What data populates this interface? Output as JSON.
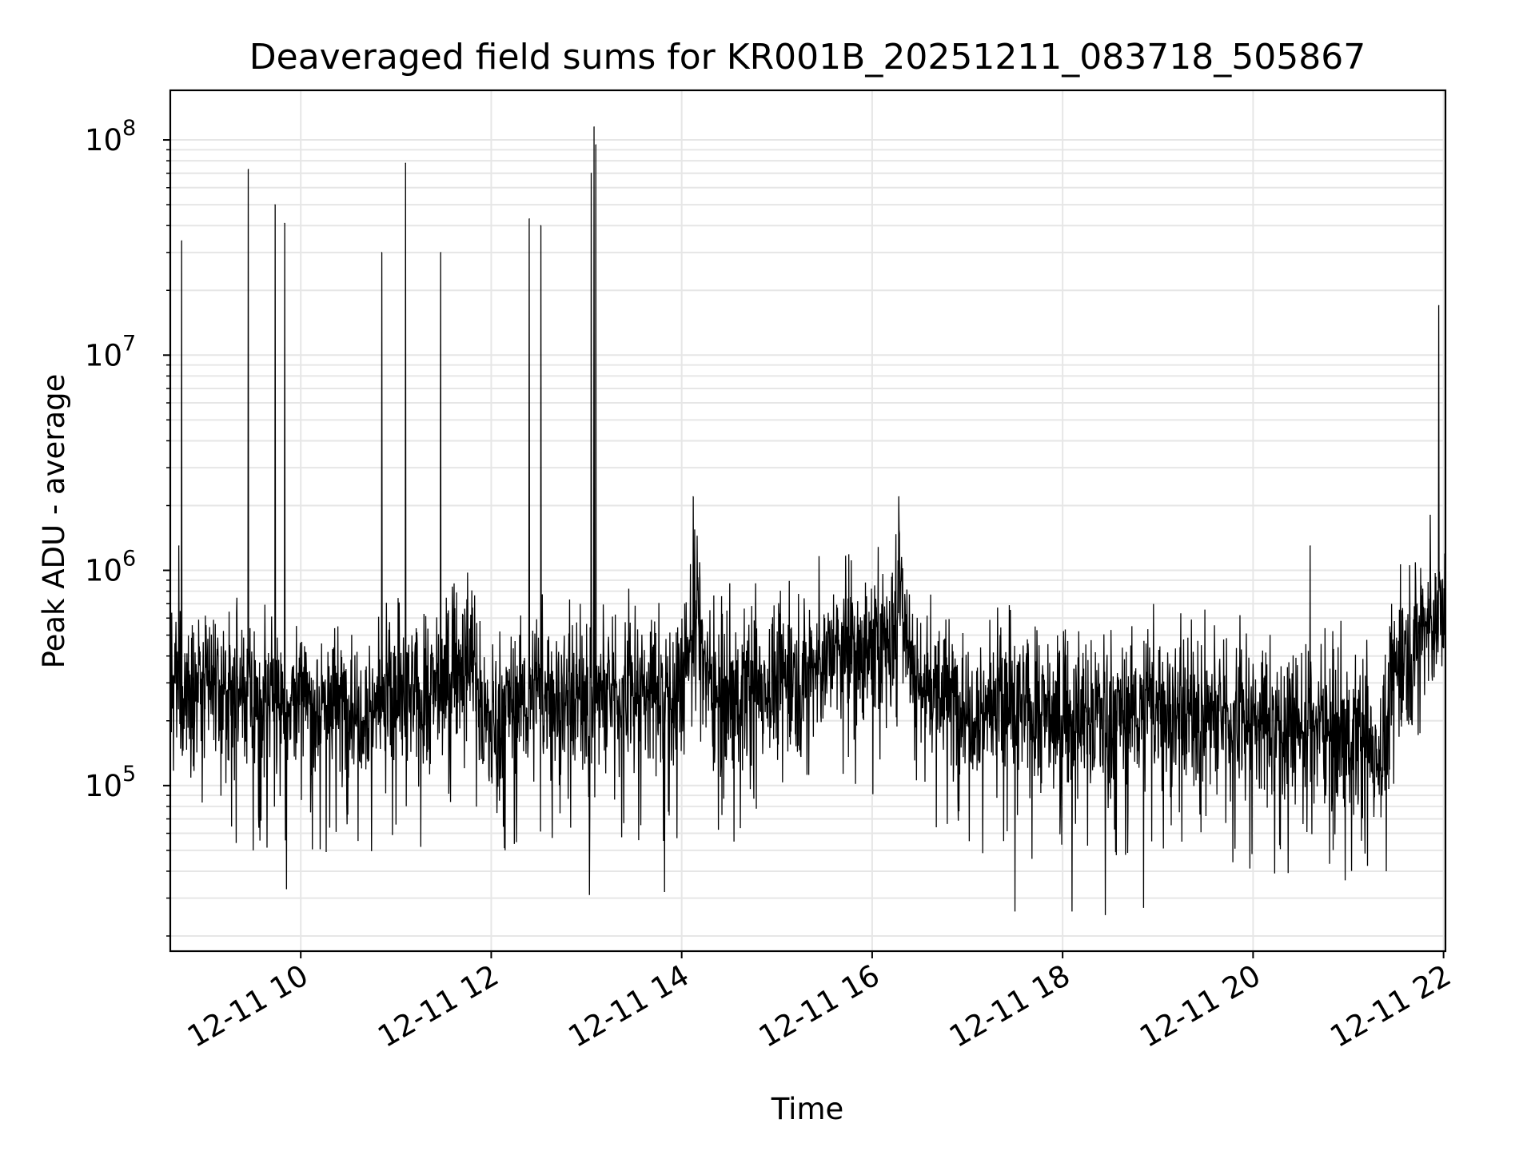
{
  "chart_data": {
    "type": "line",
    "title": "Deaveraged field sums for KR001B_20251211_083718_505867",
    "xlabel": "Time",
    "ylabel": "Peak ADU - average",
    "yscale": "log",
    "ylim": [
      17000,
      170000000
    ],
    "xlim_hours": [
      8.63,
      22.02
    ],
    "grid": true,
    "line_color": "#000000",
    "grid_color": "#e6e6e6",
    "x_ticks": [
      {
        "hour": 10,
        "label": "12-11 10"
      },
      {
        "hour": 12,
        "label": "12-11 12"
      },
      {
        "hour": 14,
        "label": "12-11 14"
      },
      {
        "hour": 16,
        "label": "12-11 16"
      },
      {
        "hour": 18,
        "label": "12-11 18"
      },
      {
        "hour": 20,
        "label": "12-11 20"
      },
      {
        "hour": 22,
        "label": "12-11 22"
      }
    ],
    "y_ticks": [
      {
        "value": 100000,
        "base": "10",
        "exp": "5"
      },
      {
        "value": 1000000,
        "base": "10",
        "exp": "6"
      },
      {
        "value": 10000000,
        "base": "10",
        "exp": "7"
      },
      {
        "value": 100000000,
        "base": "10",
        "exp": "8"
      }
    ],
    "baseline_segments": [
      {
        "t": 8.63,
        "v": 280000
      },
      {
        "t": 9.0,
        "v": 280000
      },
      {
        "t": 9.5,
        "v": 250000
      },
      {
        "t": 10.0,
        "v": 240000
      },
      {
        "t": 10.8,
        "v": 240000
      },
      {
        "t": 11.3,
        "v": 250000
      },
      {
        "t": 11.8,
        "v": 420000
      },
      {
        "t": 11.95,
        "v": 180000
      },
      {
        "t": 12.2,
        "v": 250000
      },
      {
        "t": 13.0,
        "v": 260000
      },
      {
        "t": 13.4,
        "v": 270000
      },
      {
        "t": 14.0,
        "v": 280000
      },
      {
        "t": 14.15,
        "v": 700000
      },
      {
        "t": 14.3,
        "v": 260000
      },
      {
        "t": 15.0,
        "v": 300000
      },
      {
        "t": 15.6,
        "v": 400000
      },
      {
        "t": 16.2,
        "v": 450000
      },
      {
        "t": 16.3,
        "v": 900000
      },
      {
        "t": 16.45,
        "v": 300000
      },
      {
        "t": 17.0,
        "v": 240000
      },
      {
        "t": 18.0,
        "v": 210000
      },
      {
        "t": 19.0,
        "v": 230000
      },
      {
        "t": 20.0,
        "v": 200000
      },
      {
        "t": 21.0,
        "v": 180000
      },
      {
        "t": 21.35,
        "v": 140000
      },
      {
        "t": 21.5,
        "v": 350000
      },
      {
        "t": 21.75,
        "v": 550000
      },
      {
        "t": 22.02,
        "v": 620000
      }
    ],
    "spikes": [
      {
        "t": 8.75,
        "v": 34000000
      },
      {
        "t": 8.72,
        "v": 1300000
      },
      {
        "t": 9.45,
        "v": 73000000
      },
      {
        "t": 9.73,
        "v": 50000000
      },
      {
        "t": 9.83,
        "v": 41000000
      },
      {
        "t": 10.85,
        "v": 30000000
      },
      {
        "t": 11.1,
        "v": 78000000
      },
      {
        "t": 11.47,
        "v": 30000000
      },
      {
        "t": 12.4,
        "v": 43000000
      },
      {
        "t": 12.52,
        "v": 40000000
      },
      {
        "t": 13.05,
        "v": 70000000
      },
      {
        "t": 13.08,
        "v": 115000000
      },
      {
        "t": 13.1,
        "v": 95000000
      },
      {
        "t": 14.12,
        "v": 2200000
      },
      {
        "t": 16.28,
        "v": 2200000
      },
      {
        "t": 20.6,
        "v": 1300000
      },
      {
        "t": 21.95,
        "v": 17000000
      }
    ],
    "dips": [
      {
        "t": 9.5,
        "v": 50000
      },
      {
        "t": 9.85,
        "v": 33000
      },
      {
        "t": 13.03,
        "v": 31000
      },
      {
        "t": 13.82,
        "v": 32000
      },
      {
        "t": 17.5,
        "v": 26000
      },
      {
        "t": 18.1,
        "v": 26000
      },
      {
        "t": 18.45,
        "v": 25000
      },
      {
        "t": 18.85,
        "v": 27000
      },
      {
        "t": 21.4,
        "v": 40000
      }
    ]
  }
}
